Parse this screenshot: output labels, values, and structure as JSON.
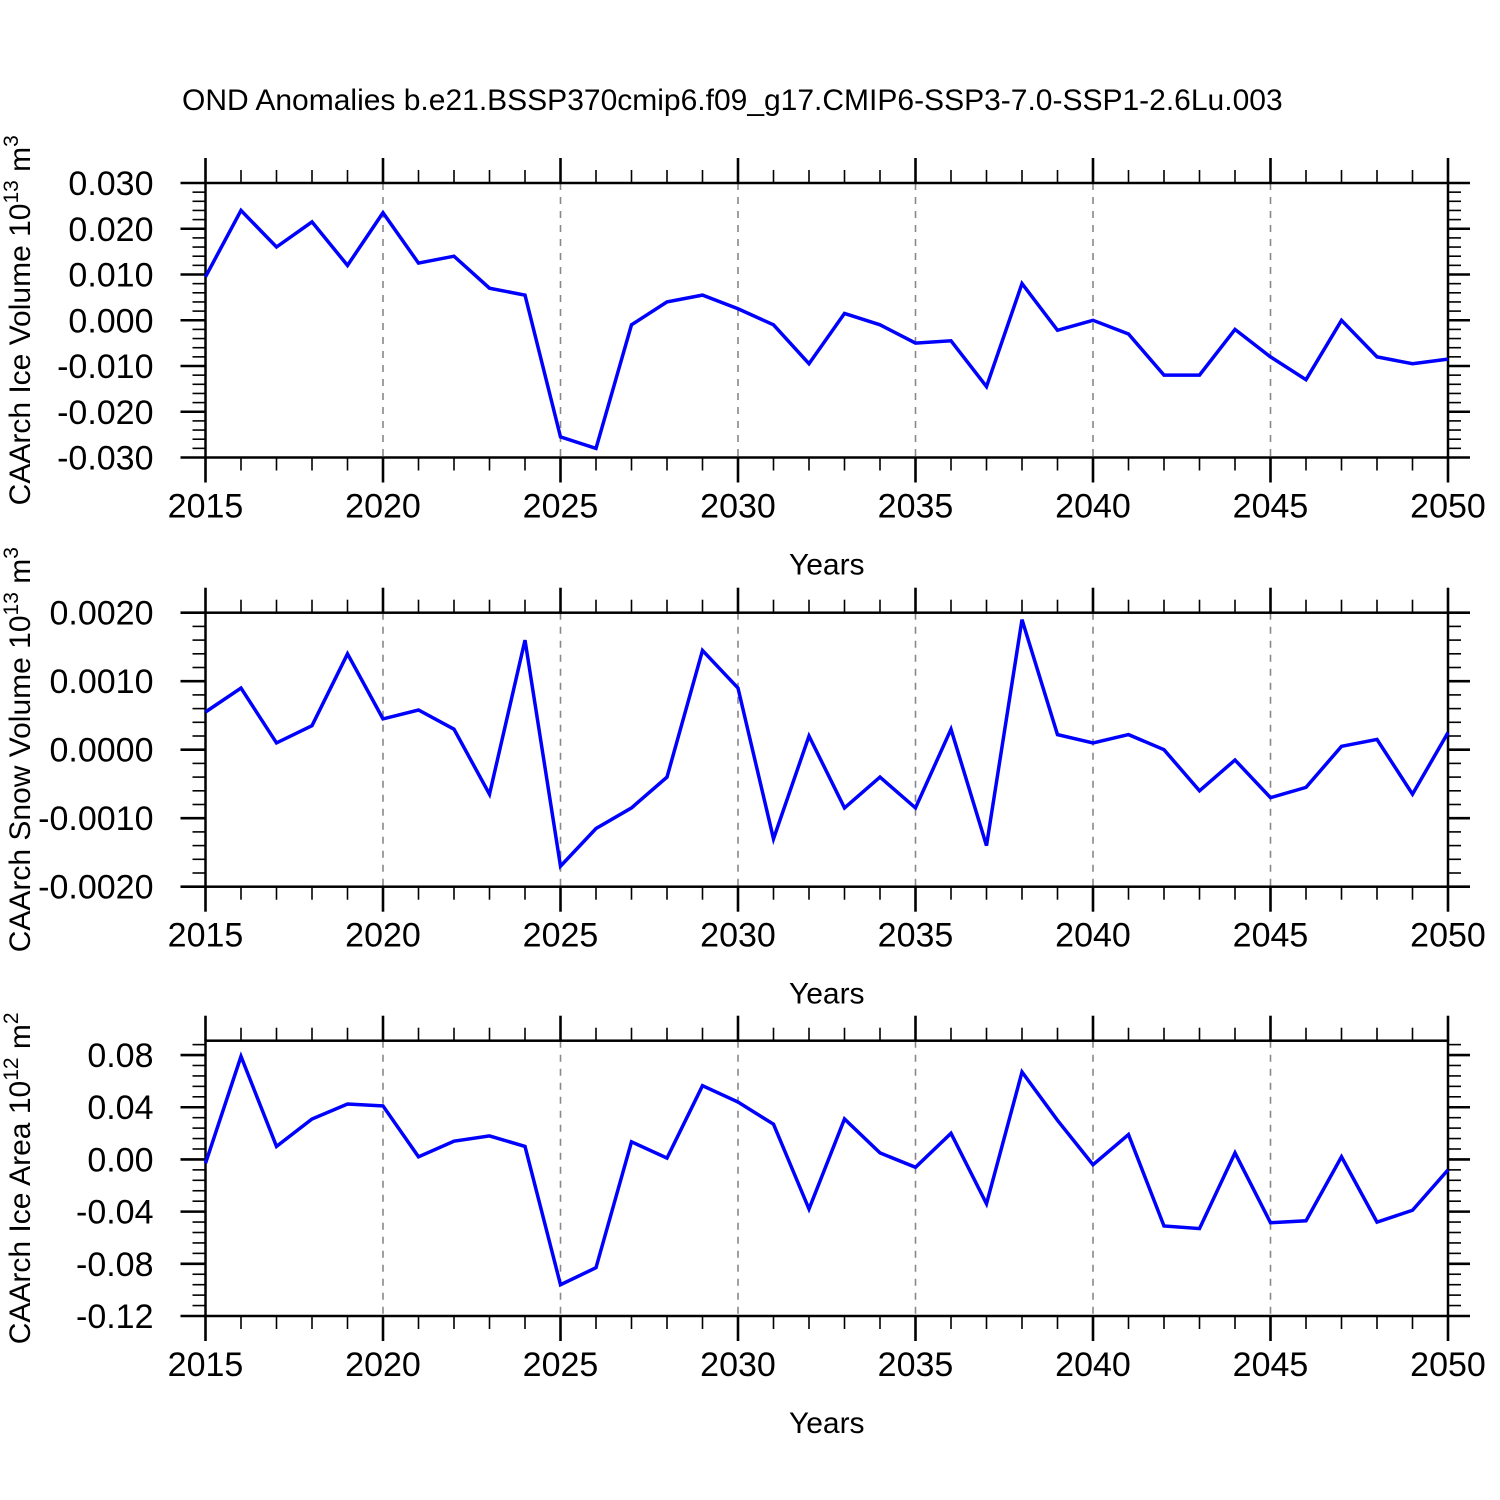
{
  "title": "OND Anomalies b.e21.BSSP370cmip6.f09_g17.CMIP6-SSP3-7.0-SSP1-2.6Lu.003",
  "colors": {
    "line": "#0000ff",
    "grid": "#888888",
    "axis": "#000000"
  },
  "chart_data": [
    {
      "id": "ice-volume",
      "type": "line",
      "ylabel_plain": "CAArch Ice Volume 10^13 m^3",
      "ylabel_parts": [
        {
          "t": "CAArch Ice Volume 10"
        },
        {
          "t": "13",
          "sup": true
        },
        {
          "t": " m"
        },
        {
          "t": "3",
          "sup": true
        }
      ],
      "xlabel": "Years",
      "xlim": [
        2015,
        2050
      ],
      "ylim": [
        -0.03,
        0.03
      ],
      "y_minor_step": 0.002,
      "x_minor_step": 1,
      "grid_x": [
        2020,
        2025,
        2030,
        2035,
        2040,
        2045
      ],
      "yticks": [
        {
          "v": 0.03,
          "label": "0.030"
        },
        {
          "v": 0.02,
          "label": "0.020"
        },
        {
          "v": 0.01,
          "label": "0.010"
        },
        {
          "v": 0.0,
          "label": "0.000"
        },
        {
          "v": -0.01,
          "label": "-0.010"
        },
        {
          "v": -0.02,
          "label": "-0.020"
        },
        {
          "v": -0.03,
          "label": "-0.030"
        }
      ],
      "xticks": [
        {
          "v": 2015,
          "label": "2015"
        },
        {
          "v": 2020,
          "label": "2020"
        },
        {
          "v": 2025,
          "label": "2025"
        },
        {
          "v": 2030,
          "label": "2030"
        },
        {
          "v": 2035,
          "label": "2035"
        },
        {
          "v": 2040,
          "label": "2040"
        },
        {
          "v": 2045,
          "label": "2045"
        },
        {
          "v": 2050,
          "label": "2050"
        }
      ],
      "x": [
        2015,
        2016,
        2017,
        2018,
        2019,
        2020,
        2021,
        2022,
        2023,
        2024,
        2025,
        2026,
        2027,
        2028,
        2029,
        2030,
        2031,
        2032,
        2033,
        2034,
        2035,
        2036,
        2037,
        2038,
        2039,
        2040,
        2041,
        2042,
        2043,
        2044,
        2045,
        2046,
        2047,
        2048,
        2049,
        2050
      ],
      "values": [
        0.0095,
        0.024,
        0.016,
        0.0215,
        0.012,
        0.0235,
        0.0125,
        0.014,
        0.007,
        0.0055,
        -0.0255,
        -0.028,
        -0.001,
        0.004,
        0.0055,
        0.0025,
        -0.001,
        -0.0095,
        0.0015,
        -0.001,
        -0.005,
        -0.0045,
        -0.0145,
        0.008,
        -0.0022,
        0.0,
        -0.003,
        -0.012,
        -0.012,
        -0.002,
        -0.008,
        -0.013,
        0.0,
        -0.008,
        -0.0095,
        -0.0085
      ]
    },
    {
      "id": "snow-volume",
      "type": "line",
      "ylabel_plain": "CAArch Snow Volume 10^13 m^3",
      "ylabel_parts": [
        {
          "t": "CAArch Snow Volume 10"
        },
        {
          "t": "13",
          "sup": true
        },
        {
          "t": " m"
        },
        {
          "t": "3",
          "sup": true
        }
      ],
      "xlabel": "Years",
      "xlim": [
        2015,
        2050
      ],
      "ylim": [
        -0.002,
        0.002
      ],
      "y_minor_step": 0.0002,
      "x_minor_step": 1,
      "grid_x": [
        2020,
        2025,
        2030,
        2035,
        2040,
        2045
      ],
      "yticks": [
        {
          "v": 0.002,
          "label": "0.0020"
        },
        {
          "v": 0.001,
          "label": "0.0010"
        },
        {
          "v": 0.0,
          "label": "0.0000"
        },
        {
          "v": -0.001,
          "label": "-0.0010"
        },
        {
          "v": -0.002,
          "label": "-0.0020"
        }
      ],
      "xticks": [
        {
          "v": 2015,
          "label": "2015"
        },
        {
          "v": 2020,
          "label": "2020"
        },
        {
          "v": 2025,
          "label": "2025"
        },
        {
          "v": 2030,
          "label": "2030"
        },
        {
          "v": 2035,
          "label": "2035"
        },
        {
          "v": 2040,
          "label": "2040"
        },
        {
          "v": 2045,
          "label": "2045"
        },
        {
          "v": 2050,
          "label": "2050"
        }
      ],
      "x": [
        2015,
        2016,
        2017,
        2018,
        2019,
        2020,
        2021,
        2022,
        2023,
        2024,
        2025,
        2026,
        2027,
        2028,
        2029,
        2030,
        2031,
        2032,
        2033,
        2034,
        2035,
        2036,
        2037,
        2038,
        2039,
        2040,
        2041,
        2042,
        2043,
        2044,
        2045,
        2046,
        2047,
        2048,
        2049,
        2050
      ],
      "values": [
        0.00055,
        0.0009,
        0.0001,
        0.00035,
        0.0014,
        0.00045,
        0.00058,
        0.0003,
        -0.00065,
        0.0016,
        -0.0017,
        -0.00115,
        -0.00085,
        -0.0004,
        0.00145,
        0.0009,
        -0.0013,
        0.0002,
        -0.00085,
        -0.0004,
        -0.00085,
        0.0003,
        -0.0014,
        0.0019,
        0.00022,
        0.0001,
        0.00022,
        0.0,
        -0.0006,
        -0.00015,
        -0.0007,
        -0.00055,
        5e-05,
        0.00015,
        -0.00065,
        0.00025
      ]
    },
    {
      "id": "ice-area",
      "type": "line",
      "ylabel_plain": "CAArch Ice Area 10^12 m^2",
      "ylabel_parts": [
        {
          "t": "CAArch Ice Area 10"
        },
        {
          "t": "12",
          "sup": true
        },
        {
          "t": " m"
        },
        {
          "t": "2",
          "sup": true
        }
      ],
      "xlabel": "Years",
      "xlim": [
        2015,
        2050
      ],
      "ylim": [
        -0.12,
        0.091
      ],
      "y_minor_step": 0.008,
      "x_minor_step": 1,
      "grid_x": [
        2020,
        2025,
        2030,
        2035,
        2040,
        2045
      ],
      "yticks": [
        {
          "v": 0.08,
          "label": "0.08"
        },
        {
          "v": 0.04,
          "label": "0.04"
        },
        {
          "v": 0.0,
          "label": "0.00"
        },
        {
          "v": -0.04,
          "label": "-0.04"
        },
        {
          "v": -0.08,
          "label": "-0.08"
        },
        {
          "v": -0.12,
          "label": "-0.12"
        }
      ],
      "xticks": [
        {
          "v": 2015,
          "label": "2015"
        },
        {
          "v": 2020,
          "label": "2020"
        },
        {
          "v": 2025,
          "label": "2025"
        },
        {
          "v": 2030,
          "label": "2030"
        },
        {
          "v": 2035,
          "label": "2035"
        },
        {
          "v": 2040,
          "label": "2040"
        },
        {
          "v": 2045,
          "label": "2045"
        },
        {
          "v": 2050,
          "label": "2050"
        }
      ],
      "x": [
        2015,
        2016,
        2017,
        2018,
        2019,
        2020,
        2021,
        2022,
        2023,
        2024,
        2025,
        2026,
        2027,
        2028,
        2029,
        2030,
        2031,
        2032,
        2033,
        2034,
        2035,
        2036,
        2037,
        2038,
        2039,
        2040,
        2041,
        2042,
        2043,
        2044,
        2045,
        2046,
        2047,
        2048,
        2049,
        2050
      ],
      "values": [
        -0.003,
        0.079,
        0.01,
        0.031,
        0.0425,
        0.041,
        0.002,
        0.014,
        0.018,
        0.01,
        -0.096,
        -0.083,
        0.0135,
        0.001,
        0.0565,
        0.044,
        0.027,
        -0.038,
        0.031,
        0.005,
        -0.006,
        0.02,
        -0.034,
        0.067,
        0.03,
        -0.004,
        0.019,
        -0.051,
        -0.053,
        0.005,
        -0.0485,
        -0.047,
        0.002,
        -0.048,
        -0.039,
        -0.008
      ]
    }
  ]
}
